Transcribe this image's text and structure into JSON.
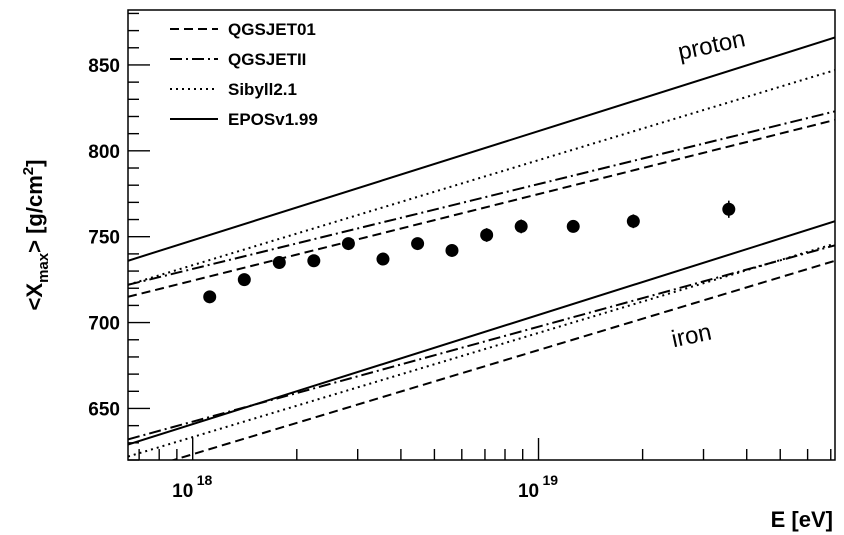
{
  "chart_data": {
    "type": "line",
    "xlabel": "E [eV]",
    "ylabel_main": "<X",
    "ylabel_sub": "max",
    "ylabel_rest": "> [g/cm",
    "ylabel_sup": "2",
    "ylabel_end": "]",
    "x_scale": "log",
    "xlim": [
      6.5e+17,
      7.2e+19
    ],
    "ylim": [
      620,
      882
    ],
    "x_ticks": [
      {
        "value": 1e+18,
        "base": "10",
        "exp": "18"
      },
      {
        "value": 1e+19,
        "base": "10",
        "exp": "19"
      }
    ],
    "y_ticks": [
      650,
      700,
      750,
      800,
      850
    ],
    "grid": false,
    "legend_position": "top-left",
    "legend": [
      {
        "label": "QGSJET01",
        "style": "dashed"
      },
      {
        "label": "QGSJETII",
        "style": "dashdot"
      },
      {
        "label": "Sibyll2.1",
        "style": "dotted"
      },
      {
        "label": "EPOSv1.99",
        "style": "solid"
      }
    ],
    "annotations": [
      {
        "text": "proton",
        "x": 3.2e+19,
        "y": 857,
        "angle": -12
      },
      {
        "text": "iron",
        "x": 2.8e+19,
        "y": 688,
        "angle": -12
      }
    ],
    "series": [
      {
        "name": "QGSJET01",
        "style": "dashed",
        "points": [
          [
            6.5e+17,
            715
          ],
          [
            7.2e+19,
            818
          ]
        ]
      },
      {
        "name": "QGSJETII",
        "style": "dashdot",
        "points": [
          [
            6.5e+17,
            722
          ],
          [
            7.2e+19,
            823
          ]
        ]
      },
      {
        "name": "Sibyll2.1",
        "style": "dotted",
        "points": [
          [
            6.5e+17,
            722
          ],
          [
            7.2e+19,
            847
          ]
        ]
      },
      {
        "name": "EPOSv1.99",
        "style": "solid",
        "points": [
          [
            6.5e+17,
            736
          ],
          [
            7.2e+19,
            866
          ]
        ]
      },
      {
        "name": "QGSJET01",
        "style": "dashed",
        "points": [
          [
            6.5e+17,
            612
          ],
          [
            7.2e+19,
            736
          ]
        ]
      },
      {
        "name": "QGSJETII",
        "style": "dashdot",
        "points": [
          [
            6.5e+17,
            632
          ],
          [
            7.2e+19,
            745
          ]
        ]
      },
      {
        "name": "Sibyll2.1",
        "style": "dotted",
        "points": [
          [
            6.5e+17,
            622
          ],
          [
            7.2e+19,
            746
          ]
        ]
      },
      {
        "name": "EPOSv1.99",
        "style": "solid",
        "points": [
          [
            6.5e+17,
            629
          ],
          [
            7.2e+19,
            759
          ]
        ]
      }
    ],
    "data_points": [
      {
        "x": 1.12e+18,
        "y": 715,
        "err": 2
      },
      {
        "x": 1.41e+18,
        "y": 725,
        "err": 2
      },
      {
        "x": 1.78e+18,
        "y": 735,
        "err": 2
      },
      {
        "x": 2.24e+18,
        "y": 736,
        "err": 2
      },
      {
        "x": 2.82e+18,
        "y": 746,
        "err": 2
      },
      {
        "x": 3.55e+18,
        "y": 737,
        "err": 2
      },
      {
        "x": 4.47e+18,
        "y": 746,
        "err": 2
      },
      {
        "x": 5.62e+18,
        "y": 742,
        "err": 2
      },
      {
        "x": 7.08e+18,
        "y": 751,
        "err": 4
      },
      {
        "x": 8.91e+18,
        "y": 756,
        "err": 4
      },
      {
        "x": 1.26e+19,
        "y": 756,
        "err": 2
      },
      {
        "x": 1.88e+19,
        "y": 759,
        "err": 4
      },
      {
        "x": 3.55e+19,
        "y": 766,
        "err": 5
      }
    ]
  }
}
